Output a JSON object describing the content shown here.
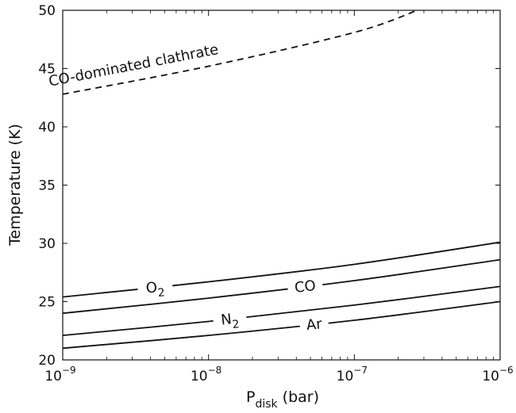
{
  "chart_data": {
    "type": "line",
    "xlabel_main": "P",
    "xlabel_sub": "disk",
    "xlabel_unit": " (bar)",
    "ylabel": "Temperature (K)",
    "xscale": "log",
    "xlim": [
      1e-09,
      1e-06
    ],
    "ylim": [
      20,
      50
    ],
    "grid": false,
    "x_ticks": [
      {
        "value": 1e-09,
        "base": "10",
        "exp": "−9"
      },
      {
        "value": 1e-08,
        "base": "10",
        "exp": "−8"
      },
      {
        "value": 1e-07,
        "base": "10",
        "exp": "−7"
      },
      {
        "value": 1e-06,
        "base": "10",
        "exp": "−6"
      }
    ],
    "y_ticks": [
      20,
      25,
      30,
      35,
      40,
      45,
      50
    ],
    "series": [
      {
        "name": "CO-dominated clathrate",
        "dashed": true,
        "x": [
          1e-09,
          1e-08,
          1e-07,
          2.7e-07
        ],
        "y": [
          42.8,
          45.2,
          48.1,
          50.0
        ]
      },
      {
        "name": "O2",
        "label_main": "O",
        "label_sub": "2",
        "dashed": false,
        "x": [
          1e-09,
          1e-08,
          1e-07,
          1e-06
        ],
        "y": [
          25.4,
          26.7,
          28.2,
          30.1
        ]
      },
      {
        "name": "CO",
        "dashed": false,
        "x": [
          1e-09,
          1e-08,
          1e-07,
          1e-06
        ],
        "y": [
          24.0,
          25.3,
          26.8,
          28.6
        ]
      },
      {
        "name": "N2",
        "label_main": "N",
        "label_sub": "2",
        "dashed": false,
        "x": [
          1e-09,
          1e-08,
          1e-07,
          1e-06
        ],
        "y": [
          22.1,
          23.3,
          24.7,
          26.3
        ]
      },
      {
        "name": "Ar",
        "dashed": false,
        "x": [
          1e-09,
          1e-08,
          1e-07,
          1e-06
        ],
        "y": [
          21.0,
          22.1,
          23.4,
          25.0
        ]
      }
    ]
  }
}
